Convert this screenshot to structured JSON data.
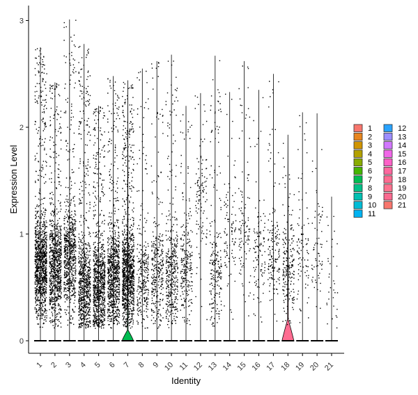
{
  "chart_data": {
    "type": "violin",
    "title": "",
    "xlabel": "Identity",
    "ylabel": "Expression Level",
    "ylim": [
      -0.12,
      3.05
    ],
    "yticks": [
      0,
      1,
      2,
      3
    ],
    "grid": false,
    "legend_position": "right",
    "categories": [
      "1",
      "2",
      "3",
      "4",
      "5",
      "6",
      "7",
      "8",
      "9",
      "10",
      "11",
      "12",
      "13",
      "14",
      "15",
      "16",
      "17",
      "18",
      "19",
      "20",
      "21"
    ],
    "colors": [
      "#F8766D",
      "#E7851E",
      "#D09400",
      "#B2A100",
      "#89AC00",
      "#45B500",
      "#00BC51",
      "#00C087",
      "#00C0B2",
      "#00BCD6",
      "#00B3F2",
      "#29A3FF",
      "#9C8DFF",
      "#D277FF",
      "#F166E8",
      "#FF61C7",
      "#FF689E",
      "#FF6C91",
      "#FF7390",
      "#FB6A90",
      "#F8766D"
    ],
    "point_max": [
      2.75,
      2.42,
      3.01,
      2.78,
      2.2,
      2.48,
      2.44,
      2.55,
      2.62,
      2.68,
      2.2,
      2.32,
      2.67,
      2.33,
      2.62,
      2.35,
      2.5,
      1.93,
      2.14,
      2.13,
      1.35
    ],
    "point_density": [
      1.0,
      0.75,
      0.62,
      0.7,
      0.78,
      0.72,
      0.95,
      0.25,
      0.28,
      0.35,
      0.22,
      0.1,
      0.2,
      0.09,
      0.1,
      0.1,
      0.14,
      0.18,
      0.08,
      0.06,
      0.03
    ],
    "point_center": [
      0.7,
      0.7,
      0.8,
      0.5,
      0.5,
      0.6,
      0.6,
      0.6,
      0.6,
      0.6,
      0.7,
      1.4,
      0.6,
      1.0,
      1.0,
      0.8,
      0.8,
      0.7,
      0.8,
      0.9,
      0.6
    ],
    "violin_peak_width": [
      0.02,
      0.02,
      0.02,
      0.02,
      0.02,
      0.02,
      0.4,
      0.02,
      0.02,
      0.02,
      0.02,
      0.02,
      0.02,
      0.02,
      0.02,
      0.02,
      0.02,
      0.42,
      0.02,
      0.02,
      0.02
    ],
    "violin_height": [
      0.0,
      0.0,
      0.0,
      0.0,
      0.0,
      0.0,
      0.1,
      0.0,
      0.0,
      0.0,
      0.0,
      0.0,
      0.0,
      0.0,
      0.0,
      0.0,
      0.0,
      0.2,
      0.0,
      0.0,
      0.0
    ]
  }
}
